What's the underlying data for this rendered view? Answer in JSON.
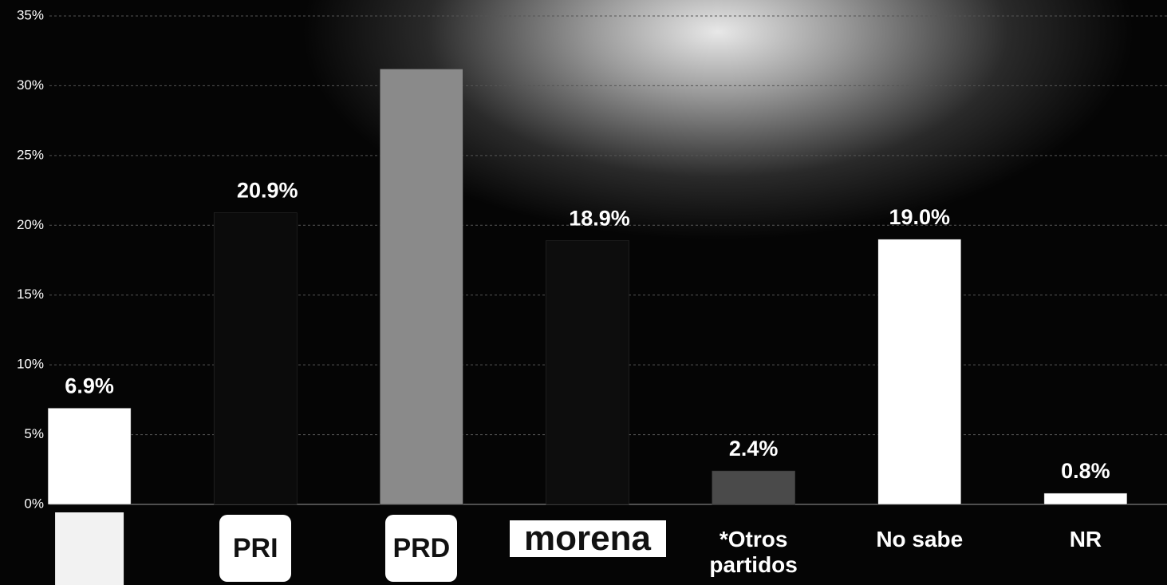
{
  "chart_data": {
    "type": "bar",
    "categories": [
      null,
      "PRI",
      "PRD",
      "morena",
      "*Otros partidos",
      "No sabe",
      "NR"
    ],
    "values": [
      6.9,
      20.9,
      31.2,
      18.9,
      2.4,
      19.0,
      0.8
    ],
    "value_labels": [
      "6.9%",
      "20.9%",
      null,
      "18.9%",
      "2.4%",
      "19.0%",
      "0.8%"
    ],
    "colors": [
      "#ffffff",
      "#0b0b0b",
      "#8a8a8a",
      "#0d0d0d",
      "#4a4a4a",
      "#ffffff",
      "#ffffff"
    ],
    "ylim": [
      0,
      35
    ],
    "yticks": [
      {
        "value": 0,
        "label": "0%"
      },
      {
        "value": 5,
        "label": "5%"
      },
      {
        "value": 10,
        "label": "10%"
      },
      {
        "value": 15,
        "label": "15%"
      },
      {
        "value": 20,
        "label": "20%"
      },
      {
        "value": 25,
        "label": "25%"
      },
      {
        "value": 30,
        "label": "30%"
      },
      {
        "value": 35,
        "label": "35%"
      }
    ],
    "grid": true
  }
}
